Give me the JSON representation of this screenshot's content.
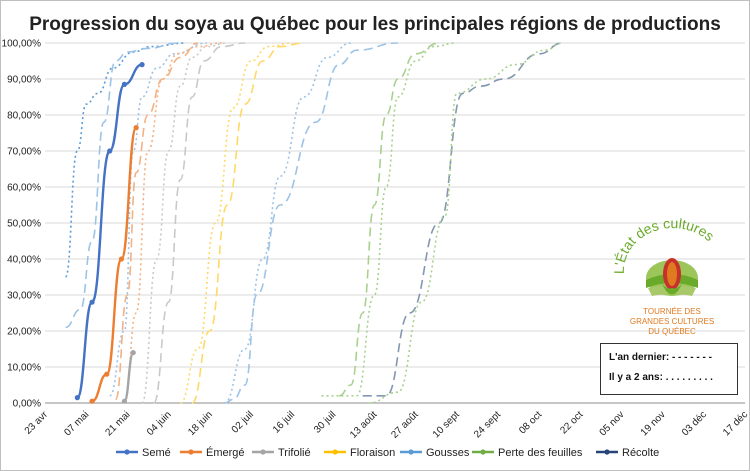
{
  "chart_data": {
    "type": "line",
    "title": "Progression du soya au Québec pour les principales régions de productions",
    "xlabel": "",
    "ylabel": "",
    "ylim": [
      0,
      1
    ],
    "y_ticks": [
      "0,00%",
      "10,00%",
      "20,00%",
      "30,00%",
      "40,00%",
      "50,00%",
      "60,00%",
      "70,00%",
      "80,00%",
      "90,00%",
      "100,00%"
    ],
    "x_ticks": [
      "23 avr",
      "07 mai",
      "21 mai",
      "04 juin",
      "18 juin",
      "02 juil",
      "16 juil",
      "30 juil",
      "13 août",
      "27 août",
      "10 sept",
      "24 sept",
      "08 oct",
      "22 oct",
      "05 nov",
      "19 nov",
      "03 déc",
      "17 déc"
    ],
    "x_unit": "days from 23 avr (2 weeks per tick)",
    "legend_position": "bottom",
    "series": [
      {
        "name": "Semé",
        "color": "#4472c4",
        "style": "solid",
        "markers": true,
        "x": [
          11,
          16,
          22,
          27,
          33
        ],
        "y": [
          0.015,
          0.28,
          0.7,
          0.885,
          0.94
        ]
      },
      {
        "name": "Émergé",
        "color": "#ed7d31",
        "style": "solid",
        "markers": true,
        "x": [
          16,
          21,
          26,
          31
        ],
        "y": [
          0.005,
          0.08,
          0.4,
          0.765
        ]
      },
      {
        "name": "Trifolié",
        "color": "#a5a5a5",
        "style": "solid",
        "markers": true,
        "x": [
          27,
          30
        ],
        "y": [
          0.005,
          0.14
        ]
      },
      {
        "name": "Floraison",
        "color": "#ffc000",
        "style": "solid",
        "markers": true,
        "x": [],
        "y": []
      },
      {
        "name": "Gousses",
        "color": "#5b9bd5",
        "style": "solid",
        "markers": true,
        "x": [],
        "y": []
      },
      {
        "name": "Perte des feuilles",
        "color": "#70ad47",
        "style": "solid",
        "markers": true,
        "x": [],
        "y": []
      },
      {
        "name": "Récolte",
        "color": "#264478",
        "style": "solid",
        "markers": true,
        "x": [],
        "y": []
      },
      {
        "name": "",
        "color": "#5b9bd5",
        "style": "dotted",
        "x": [
          7,
          11,
          14,
          18,
          23,
          30,
          36,
          48
        ],
        "y": [
          0.35,
          0.7,
          0.83,
          0.86,
          0.93,
          0.975,
          0.99,
          1.0
        ]
      },
      {
        "name": "",
        "color": "#9dc3e6",
        "style": "dashed",
        "x": [
          7,
          12,
          16,
          20,
          24,
          28,
          35,
          45
        ],
        "y": [
          0.21,
          0.26,
          0.45,
          0.78,
          0.95,
          0.975,
          0.985,
          1.0
        ]
      },
      {
        "name": "",
        "color": "#9dc3e6",
        "style": "dotted",
        "x": [
          22,
          27,
          30,
          33,
          38,
          44,
          55
        ],
        "y": [
          0.02,
          0.2,
          0.7,
          0.85,
          0.93,
          0.97,
          1.0
        ]
      },
      {
        "name": "",
        "color": "#f4b183",
        "style": "dashed",
        "x": [
          24,
          28,
          31,
          35,
          40,
          46,
          52
        ],
        "y": [
          0.01,
          0.3,
          0.64,
          0.8,
          0.9,
          0.96,
          1.0
        ]
      },
      {
        "name": "",
        "color": "#f4b183",
        "style": "dotted",
        "x": [
          27,
          31,
          35,
          40,
          45,
          52,
          60
        ],
        "y": [
          0.0,
          0.25,
          0.7,
          0.9,
          0.97,
          0.99,
          1.0
        ]
      },
      {
        "name": "",
        "color": "#c9c9c9",
        "style": "dotted",
        "x": [
          33,
          38,
          42,
          46,
          50,
          55,
          62
        ],
        "y": [
          0.0,
          0.4,
          0.7,
          0.88,
          0.96,
          0.99,
          1.0
        ]
      },
      {
        "name": "",
        "color": "#c9c9c9",
        "style": "dashed",
        "x": [
          37,
          42,
          46,
          50,
          54,
          60,
          68
        ],
        "y": [
          0.0,
          0.28,
          0.62,
          0.85,
          0.95,
          0.99,
          1.0
        ]
      },
      {
        "name": "",
        "color": "#ffd966",
        "style": "dotted",
        "x": [
          46,
          52,
          58,
          64,
          70,
          76,
          84
        ],
        "y": [
          0.0,
          0.15,
          0.5,
          0.82,
          0.95,
          0.99,
          1.0
        ]
      },
      {
        "name": "",
        "color": "#ffd966",
        "style": "dashed",
        "x": [
          50,
          56,
          62,
          68,
          74,
          80,
          88
        ],
        "y": [
          0.0,
          0.2,
          0.55,
          0.83,
          0.95,
          0.99,
          1.0
        ]
      },
      {
        "name": "",
        "color": "#9dc3e6",
        "style": "dashed",
        "x": [
          61,
          64,
          68,
          72,
          80,
          92,
          100,
          106,
          120
        ],
        "y": [
          0.0,
          0.01,
          0.05,
          0.3,
          0.55,
          0.78,
          0.94,
          0.98,
          1.0
        ]
      },
      {
        "name": "",
        "color": "#9dc3e6",
        "style": "dotted",
        "x": [
          61,
          68,
          74,
          80,
          88,
          96,
          104
        ],
        "y": [
          0.0,
          0.15,
          0.4,
          0.63,
          0.85,
          0.96,
          1.0
        ]
      },
      {
        "name": "",
        "color": "#a9d18e",
        "style": "dotted",
        "x": [
          94,
          106,
          112,
          116,
          120,
          126,
          132,
          140
        ],
        "y": [
          0.02,
          0.02,
          0.3,
          0.6,
          0.85,
          0.95,
          0.99,
          1.0
        ]
      },
      {
        "name": "",
        "color": "#a9d18e",
        "style": "dashed",
        "x": [
          100,
          104,
          108,
          112,
          116,
          120,
          126,
          134
        ],
        "y": [
          0.02,
          0.05,
          0.25,
          0.55,
          0.8,
          0.9,
          0.97,
          1.0
        ]
      },
      {
        "name": "",
        "color": "#8497b0",
        "style": "dashed",
        "x": [
          108,
          116,
          124,
          134,
          142,
          148,
          156,
          168,
          176
        ],
        "y": [
          0.02,
          0.02,
          0.25,
          0.5,
          0.86,
          0.88,
          0.9,
          0.97,
          1.0
        ]
      },
      {
        "name": "",
        "color": "#a9d18e",
        "style": "dotted",
        "x": [
          110,
          120,
          128,
          136,
          140,
          150,
          160,
          170,
          176
        ],
        "y": [
          0.0,
          0.03,
          0.28,
          0.52,
          0.86,
          0.9,
          0.94,
          0.98,
          1.0
        ]
      }
    ]
  },
  "legend": [
    "Semé",
    "Émergé",
    "Trifolié",
    "Floraison",
    "Gousses",
    "Perte des feuilles",
    "Récolte"
  ],
  "notes": {
    "last_year": "L'an dernier: - - - - - - -",
    "two_years": "Il y a 2 ans: . . . . . . . . ."
  },
  "logo": {
    "arc_text": "L'État des cultures",
    "caption_lines": [
      "TOURNÉE DES",
      "GRANDES CULTURES",
      "DU QUÉBEC"
    ],
    "colors": {
      "green": "#6aaa2a",
      "orange": "#e07a1f",
      "red": "#c8312b"
    }
  }
}
